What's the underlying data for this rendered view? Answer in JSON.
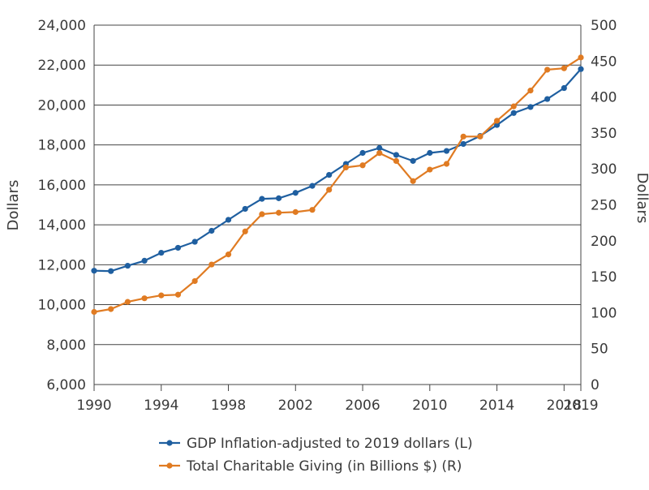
{
  "chart_data": {
    "type": "line",
    "title": "",
    "xlabel": "",
    "ylabel_left": "Dollars",
    "ylabel_right": "Dollars",
    "xlim": [
      1990,
      2019
    ],
    "x_ticks": [
      "1990",
      "1994",
      "1998",
      "2002",
      "2006",
      "2010",
      "2014",
      "2018",
      "2019"
    ],
    "ylim_left": [
      6000,
      24000
    ],
    "y_ticks_left": [
      "6,000",
      "8,000",
      "10,000",
      "12,000",
      "14,000",
      "16,000",
      "18,000",
      "20,000",
      "22,000",
      "24,000"
    ],
    "ylim_right": [
      0,
      500
    ],
    "y_ticks_right": [
      "0",
      "50",
      "100",
      "150",
      "200",
      "250",
      "300",
      "350",
      "400",
      "450",
      "500"
    ],
    "grid": "horizontal",
    "legend_placement": "bottom",
    "series": [
      {
        "name": "GDP Inflation-adjusted to 2019 dollars (L)",
        "axis": "left",
        "color": "#1f5fa0",
        "x": [
          1990,
          1991,
          1992,
          1993,
          1994,
          1995,
          1996,
          1997,
          1998,
          1999,
          2000,
          2001,
          2002,
          2003,
          2004,
          2005,
          2006,
          2007,
          2008,
          2009,
          2010,
          2011,
          2012,
          2013,
          2014,
          2015,
          2016,
          2017,
          2018,
          2019
        ],
        "values": [
          11700,
          11680,
          11950,
          12200,
          12600,
          12850,
          13150,
          13700,
          14250,
          14800,
          15300,
          15330,
          15600,
          15950,
          16500,
          17050,
          17600,
          17850,
          17500,
          17200,
          17600,
          17700,
          18050,
          18450,
          19000,
          19600,
          19900,
          20300,
          20850,
          21800
        ]
      },
      {
        "name": "Total Charitable Giving (in Billions $) (R)",
        "axis": "right",
        "color": "#e07b22",
        "x": [
          1990,
          1991,
          1992,
          1993,
          1994,
          1995,
          1996,
          1997,
          1998,
          1999,
          2000,
          2001,
          2002,
          2003,
          2004,
          2005,
          2006,
          2007,
          2008,
          2009,
          2010,
          2011,
          2012,
          2013,
          2014,
          2015,
          2016,
          2017,
          2018,
          2019
        ],
        "values": [
          101,
          105,
          115,
          120,
          124,
          125,
          144,
          167,
          181,
          213,
          237,
          239,
          240,
          243,
          271,
          302,
          305,
          322,
          311,
          283,
          299,
          307,
          345,
          345,
          367,
          387,
          409,
          438,
          440,
          455
        ]
      }
    ]
  }
}
